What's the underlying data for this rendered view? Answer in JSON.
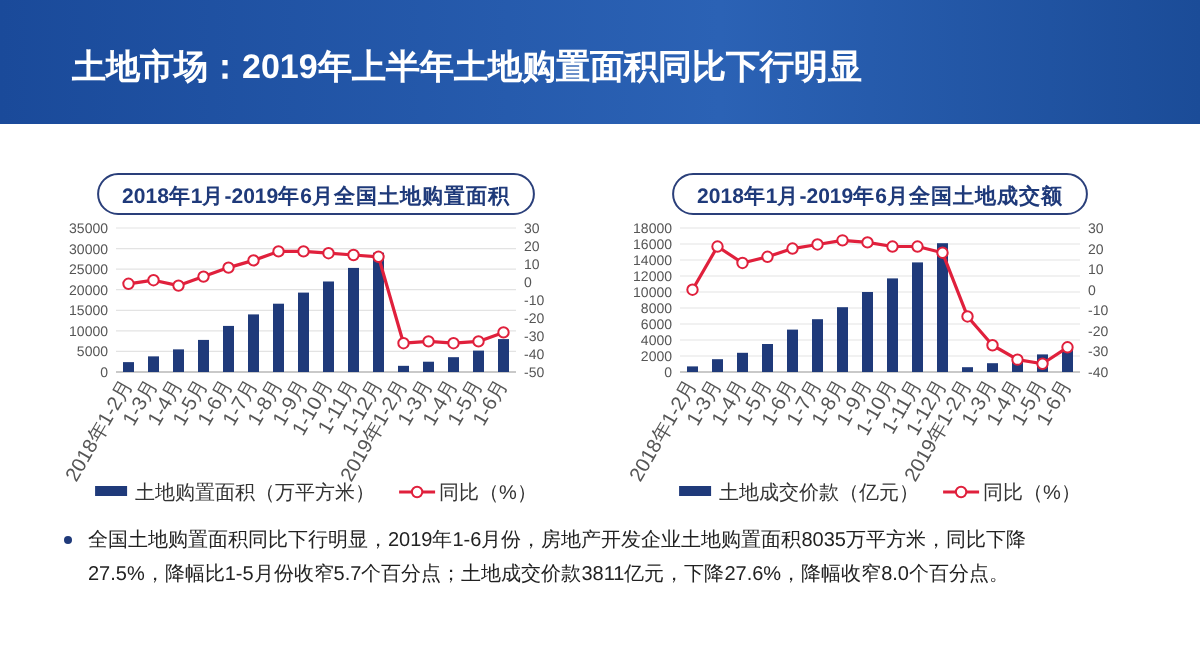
{
  "chart_data": [
    {
      "type": "other",
      "title": "土地市场：2019年上半年土地购置面积同比下行明显",
      "annotations": [
        "全国土地购置面积同比下行明显，2019年1-6月份，房地产开发企业土地购置面积8035万平方米，同比下降27.5%，降幅比1-5月份收窄5.7个百分点；土地成交价款3811亿元，下降27.6%，降幅收窄8.0个百分点。"
      ]
    },
    {
      "type": "bar",
      "title": "2018年1月-2019年6月全国土地购置面积",
      "categories": [
        "2018年1-2月",
        "1-3月",
        "1-4月",
        "1-5月",
        "1-6月",
        "1-7月",
        "1-8月",
        "1-9月",
        "1-10月",
        "1-11月",
        "1-12月",
        "2019年1-2月",
        "1-3月",
        "1-4月",
        "1-5月",
        "1-6月"
      ],
      "series": [
        {
          "name": "土地购置面积（万平方米）",
          "color": "#1f3a7a",
          "values": [
            2400,
            3800,
            5500,
            7800,
            11200,
            14000,
            16600,
            19300,
            22000,
            25300,
            29000,
            1500,
            2500,
            3600,
            5200,
            8000
          ]
        },
        {
          "name": "同比（%）",
          "type": "line",
          "axis": "y2",
          "color": "#e0203c",
          "values": [
            -1,
            1,
            -2,
            3,
            8,
            12,
            17,
            17,
            16,
            15,
            14,
            -34,
            -33,
            -34,
            -33,
            -28
          ]
        }
      ],
      "ylim": [
        0,
        35000
      ],
      "yticks": [
        0,
        5000,
        10000,
        15000,
        20000,
        25000,
        30000,
        35000
      ],
      "y2lim": [
        -50,
        30
      ],
      "y2ticks": [
        -50,
        -40,
        -30,
        -20,
        -10,
        0,
        10,
        20,
        30
      ],
      "grid": "y",
      "legend": "bottom",
      "marker": "circle"
    },
    {
      "type": "bar",
      "title": "2018年1月-2019年6月全国土地成交额",
      "categories": [
        "2018年1-2月",
        "1-3月",
        "1-4月",
        "1-5月",
        "1-6月",
        "1-7月",
        "1-8月",
        "1-9月",
        "1-10月",
        "1-11月",
        "1-12月",
        "2019年1-2月",
        "1-3月",
        "1-4月",
        "1-5月",
        "1-6月"
      ],
      "series": [
        {
          "name": "土地成交价款（亿元）",
          "color": "#1f3a7a",
          "values": [
            700,
            1600,
            2400,
            3500,
            5300,
            6600,
            8100,
            10000,
            11700,
            13700,
            16100,
            600,
            1100,
            1600,
            2200,
            3000
          ]
        },
        {
          "name": "同比（%）",
          "type": "line",
          "axis": "y2",
          "color": "#e0203c",
          "values": [
            0,
            21,
            13,
            16,
            20,
            22,
            24,
            23,
            21,
            21,
            18,
            -13,
            -27,
            -34,
            -36,
            -28
          ]
        }
      ],
      "ylim": [
        0,
        18000
      ],
      "yticks": [
        0,
        2000,
        4000,
        6000,
        8000,
        10000,
        12000,
        14000,
        16000,
        18000
      ],
      "y2lim": [
        -40,
        30
      ],
      "y2ticks": [
        -40,
        -30,
        -20,
        -10,
        0,
        10,
        20,
        30
      ],
      "grid": "y",
      "legend": "bottom",
      "marker": "circle"
    }
  ]
}
